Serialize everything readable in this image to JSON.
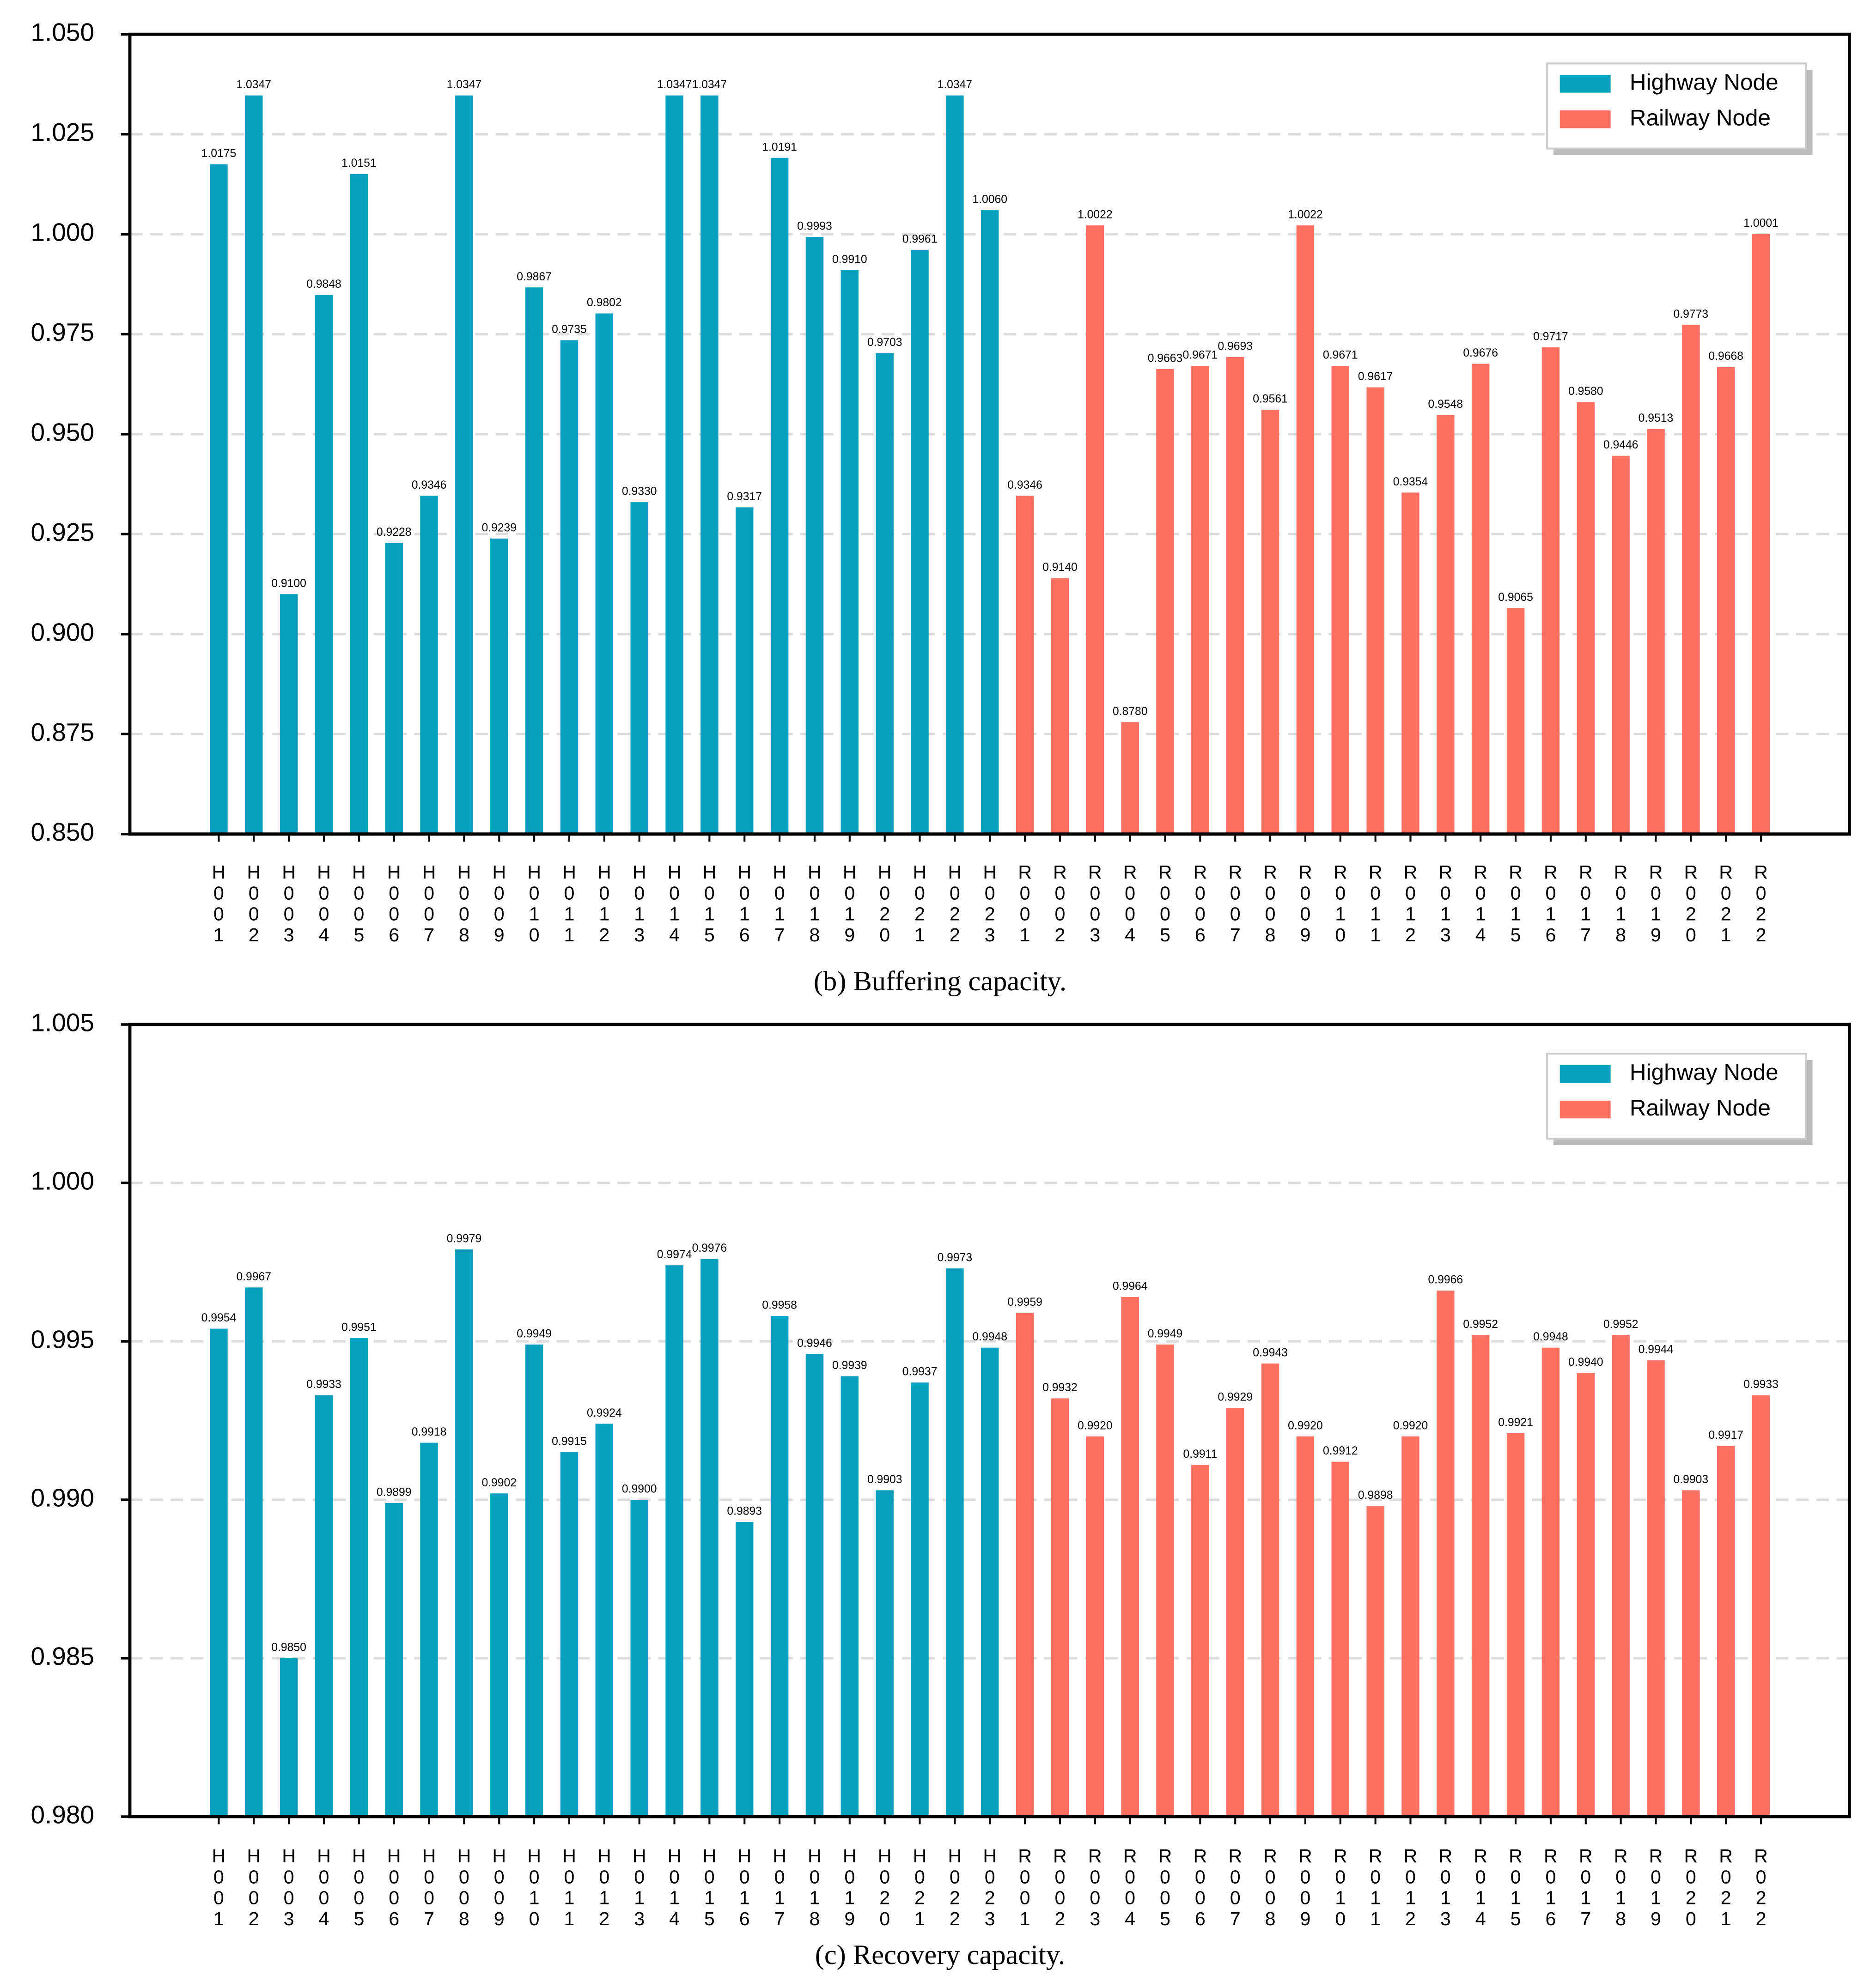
{
  "chart_data": [
    {
      "type": "bar",
      "caption": "(b) Buffering capacity.",
      "legend": "upper right",
      "grid": true,
      "categories": [
        "H001",
        "H002",
        "H003",
        "H004",
        "H005",
        "H006",
        "H007",
        "H008",
        "H009",
        "H010",
        "H011",
        "H012",
        "H013",
        "H014",
        "H015",
        "H016",
        "H017",
        "H018",
        "H019",
        "H020",
        "H021",
        "H022",
        "H023",
        "R001",
        "R002",
        "R003",
        "R004",
        "R005",
        "R006",
        "R007",
        "R008",
        "R009",
        "R010",
        "R011",
        "R012",
        "R013",
        "R014",
        "R015",
        "R016",
        "R017",
        "R018",
        "R019",
        "R020",
        "R021",
        "R022"
      ],
      "ylim": [
        0.85,
        1.05
      ],
      "yticks": [
        {
          "value": 0.85,
          "label": "0.850"
        },
        0.875,
        {
          "value": 0.9,
          "label": "0.900"
        },
        0.925,
        {
          "value": 0.95,
          "label": "0.950"
        },
        0.975,
        {
          "value": 1.0,
          "label": "1.000"
        },
        1.025,
        {
          "value": 1.05,
          "label": "1.050"
        }
      ],
      "series": [
        {
          "name": "Highway Node",
          "color": "#0aa0c0",
          "values": [
            1.0175,
            1.0347,
            0.91,
            0.9848,
            1.0151,
            0.9228,
            0.9346,
            1.0347,
            0.9239,
            0.9867,
            0.9735,
            0.9802,
            0.933,
            1.0347,
            1.0347,
            0.9317,
            1.0191,
            0.9993,
            0.991,
            0.9703,
            0.9961,
            1.0347,
            1.006,
            null,
            null,
            null,
            null,
            null,
            null,
            null,
            null,
            null,
            null,
            null,
            null,
            null,
            null,
            null,
            null,
            null,
            null,
            null,
            null,
            null,
            null
          ],
          "value_labels": [
            "1.0175",
            "1.0347",
            "0.9100",
            "0.9848",
            "1.0151",
            "0.9228",
            "0.9346",
            "1.0347",
            "0.9239",
            "0.9867",
            "0.9735",
            "0.9802",
            "0.9330",
            "1.0347",
            "1.0347",
            "0.9317",
            "1.0191",
            "0.9993",
            "0.9910",
            "0.9703",
            "0.9961",
            "1.0347",
            "1.0060",
            null,
            null,
            null,
            null,
            null,
            null,
            null,
            null,
            null,
            null,
            null,
            null,
            null,
            null,
            null,
            null,
            null,
            null,
            null,
            null,
            null,
            null
          ]
        },
        {
          "name": "Railway Node",
          "color": "#ff6f61",
          "values": [
            null,
            null,
            null,
            null,
            null,
            null,
            null,
            null,
            null,
            null,
            null,
            null,
            null,
            null,
            null,
            null,
            null,
            null,
            null,
            null,
            null,
            null,
            null,
            0.9346,
            0.914,
            1.0022,
            0.878,
            0.9663,
            0.9671,
            0.9693,
            0.9561,
            1.0022,
            0.9671,
            0.9617,
            0.9354,
            0.9548,
            0.9676,
            0.9065,
            0.9717,
            0.958,
            0.9446,
            0.9513,
            0.9773,
            0.9668,
            1.0001
          ],
          "value_labels": [
            null,
            null,
            null,
            null,
            null,
            null,
            null,
            null,
            null,
            null,
            null,
            null,
            null,
            null,
            null,
            null,
            null,
            null,
            null,
            null,
            null,
            null,
            null,
            "0.9346",
            "0.9140",
            "1.0022",
            "0.8780",
            "0.9663",
            "0.9671",
            "0.9693",
            "0.9561",
            "1.0022",
            "0.9671",
            "0.9617",
            "0.9354",
            "0.9548",
            "0.9676",
            "0.9065",
            "0.9717",
            "0.9580",
            "0.9446",
            "0.9513",
            "0.9773",
            "0.9668",
            "1.0001"
          ]
        }
      ]
    },
    {
      "type": "bar",
      "caption": "(c) Recovery capacity.",
      "legend": "upper right",
      "grid": true,
      "categories": [
        "H001",
        "H002",
        "H003",
        "H004",
        "H005",
        "H006",
        "H007",
        "H008",
        "H009",
        "H010",
        "H011",
        "H012",
        "H013",
        "H014",
        "H015",
        "H016",
        "H017",
        "H018",
        "H019",
        "H020",
        "H021",
        "H022",
        "H023",
        "R001",
        "R002",
        "R003",
        "R004",
        "R005",
        "R006",
        "R007",
        "R008",
        "R009",
        "R010",
        "R011",
        "R012",
        "R013",
        "R014",
        "R015",
        "R016",
        "R017",
        "R018",
        "R019",
        "R020",
        "R021",
        "R022"
      ],
      "ylim": [
        0.98,
        1.005
      ],
      "yticks": [
        {
          "value": 0.98,
          "label": "0.980"
        },
        0.985,
        {
          "value": 0.99,
          "label": "0.990"
        },
        0.995,
        {
          "value": 1.0,
          "label": "1.000"
        },
        1.005
      ],
      "series": [
        {
          "name": "Highway Node",
          "color": "#0aa0c0",
          "values": [
            0.9954,
            0.9967,
            0.985,
            0.9933,
            0.9951,
            0.9899,
            0.9918,
            0.9979,
            0.9902,
            0.9949,
            0.9915,
            0.9924,
            0.99,
            0.9974,
            0.9976,
            0.9893,
            0.9958,
            0.9946,
            0.9939,
            0.9903,
            0.9937,
            0.9973,
            0.9948,
            null,
            null,
            null,
            null,
            null,
            null,
            null,
            null,
            null,
            null,
            null,
            null,
            null,
            null,
            null,
            null,
            null,
            null,
            null,
            null,
            null,
            null
          ],
          "value_labels": [
            "0.9954",
            "0.9967",
            "0.9850",
            "0.9933",
            "0.9951",
            "0.9899",
            "0.9918",
            "0.9979",
            "0.9902",
            "0.9949",
            "0.9915",
            "0.9924",
            "0.9900",
            "0.9974",
            "0.9976",
            "0.9893",
            "0.9958",
            "0.9946",
            "0.9939",
            "0.9903",
            "0.9937",
            "0.9973",
            "0.9948",
            null,
            null,
            null,
            null,
            null,
            null,
            null,
            null,
            null,
            null,
            null,
            null,
            null,
            null,
            null,
            null,
            null,
            null,
            null,
            null,
            null,
            null
          ]
        },
        {
          "name": "Railway Node",
          "color": "#ff6f61",
          "values": [
            null,
            null,
            null,
            null,
            null,
            null,
            null,
            null,
            null,
            null,
            null,
            null,
            null,
            null,
            null,
            null,
            null,
            null,
            null,
            null,
            null,
            null,
            null,
            0.9959,
            0.9932,
            0.992,
            0.9964,
            0.9949,
            0.9911,
            0.9929,
            0.9943,
            0.992,
            0.9912,
            0.9898,
            0.992,
            0.9966,
            0.9952,
            0.9921,
            0.9948,
            0.994,
            0.9952,
            0.9944,
            0.9903,
            0.9917,
            0.9933
          ],
          "value_labels": [
            null,
            null,
            null,
            null,
            null,
            null,
            null,
            null,
            null,
            null,
            null,
            null,
            null,
            null,
            null,
            null,
            null,
            null,
            null,
            null,
            null,
            null,
            null,
            "0.9959",
            "0.9932",
            "0.9920",
            "0.9964",
            "0.9949",
            "0.9911",
            "0.9929",
            "0.9943",
            "0.9920",
            "0.9912",
            "0.9898",
            "0.9920",
            "0.9966",
            "0.9952",
            "0.9921",
            "0.9948",
            "0.9940",
            "0.9952",
            "0.9944",
            "0.9903",
            "0.9917",
            "0.9933"
          ]
        }
      ]
    }
  ]
}
